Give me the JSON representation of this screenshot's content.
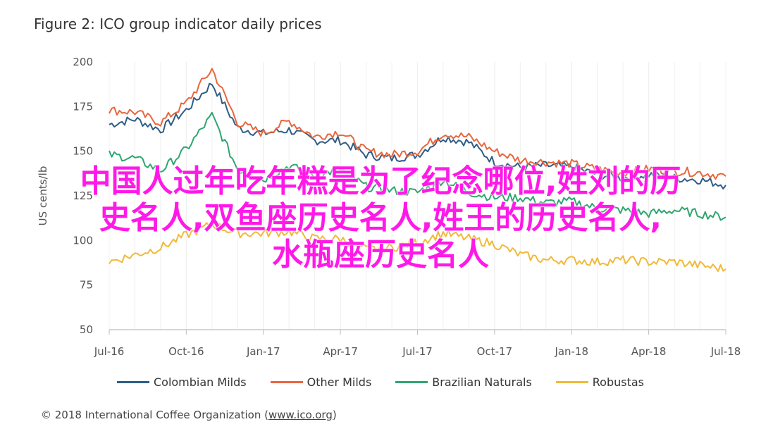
{
  "chart_data": {
    "type": "line",
    "title": "Figure 2: ICO group indicator daily prices",
    "ylabel": "US cents/lb",
    "ylim": [
      50,
      200
    ],
    "yticks": [
      50,
      75,
      100,
      125,
      150,
      175,
      200
    ],
    "xticks": [
      "Jul-16",
      "Oct-16",
      "Jan-17",
      "Apr-17",
      "Jul-17",
      "Oct-17",
      "Jan-18",
      "Apr-18",
      "Jul-18"
    ],
    "x_range": [
      "2016-07",
      "2018-07"
    ],
    "grid": "vertical",
    "legend_position": "bottom",
    "x": [
      "2016-07",
      "2016-08",
      "2016-09",
      "2016-10",
      "2016-11",
      "2016-12",
      "2017-01",
      "2017-02",
      "2017-03",
      "2017-04",
      "2017-05",
      "2017-06",
      "2017-07",
      "2017-08",
      "2017-09",
      "2017-10",
      "2017-11",
      "2017-12",
      "2018-01",
      "2018-02",
      "2018-03",
      "2018-04",
      "2018-05",
      "2018-06",
      "2018-07"
    ],
    "series": [
      {
        "name": "Colombian Milds",
        "color": "#2e5d86",
        "values": [
          165,
          168,
          162,
          173,
          188,
          163,
          160,
          162,
          156,
          156,
          148,
          146,
          148,
          158,
          155,
          144,
          141,
          142,
          141,
          137,
          135,
          137,
          135,
          134,
          131
        ]
      },
      {
        "name": "Other Milds",
        "color": "#e8663d",
        "values": [
          173,
          172,
          166,
          177,
          196,
          166,
          160,
          167,
          158,
          161,
          150,
          148,
          150,
          160,
          158,
          150,
          145,
          144,
          143,
          140,
          138,
          140,
          139,
          138,
          136
        ]
      },
      {
        "name": "Brazilian Naturals",
        "color": "#2ea570",
        "values": [
          148,
          146,
          139,
          151,
          170,
          140,
          134,
          142,
          136,
          140,
          130,
          128,
          127,
          134,
          127,
          124,
          124,
          121,
          122,
          118,
          117,
          115,
          117,
          115,
          113
        ]
      },
      {
        "name": "Robustas",
        "color": "#f0b93a",
        "values": [
          88,
          92,
          96,
          103,
          109,
          104,
          104,
          105,
          101,
          101,
          95,
          96,
          99,
          104,
          101,
          98,
          92,
          89,
          89,
          88,
          89,
          88,
          88,
          86,
          84
        ]
      }
    ]
  },
  "legend": {
    "colombian": "Colombian Milds",
    "other": "Other Milds",
    "brazilian": "Brazilian Naturals",
    "robustas": "Robustas"
  },
  "footer": {
    "copyright_prefix": "© 2018 International Coffee Organization (",
    "copyright_link": "www.ico.org",
    "copyright_suffix": ")"
  },
  "overlay": {
    "line1": "中国人过年吃年糕是为了纪念哪位,姓刘的历",
    "line2": "史名人,双鱼座历史名人,姓王的历史名人,",
    "line3": "水瓶座历史名人"
  }
}
